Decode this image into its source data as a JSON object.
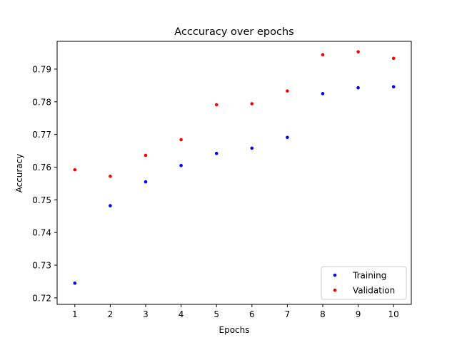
{
  "chart_data": {
    "type": "scatter",
    "title": "Acccuracy over epochs",
    "xlabel": "Epochs",
    "ylabel": "Accuracy",
    "x": [
      1,
      2,
      3,
      4,
      5,
      6,
      7,
      8,
      9,
      10
    ],
    "xlim": [
      0.5,
      10.5
    ],
    "ylim": [
      0.718,
      0.7985
    ],
    "xticks": [
      1,
      2,
      3,
      4,
      5,
      6,
      7,
      8,
      9,
      10
    ],
    "yticks": [
      0.72,
      0.73,
      0.74,
      0.75,
      0.76,
      0.77,
      0.78,
      0.79
    ],
    "grid": false,
    "legend_position": "bottom-right",
    "series": [
      {
        "name": "Training",
        "color": "#0000ff",
        "values": [
          0.7245,
          0.7482,
          0.7555,
          0.7605,
          0.7642,
          0.7658,
          0.7691,
          0.7825,
          0.7843,
          0.7846
        ]
      },
      {
        "name": "Validation",
        "color": "#ff0000",
        "values": [
          0.7592,
          0.7572,
          0.7636,
          0.7684,
          0.7791,
          0.7794,
          0.7833,
          0.7944,
          0.7953,
          0.7933
        ]
      }
    ]
  }
}
